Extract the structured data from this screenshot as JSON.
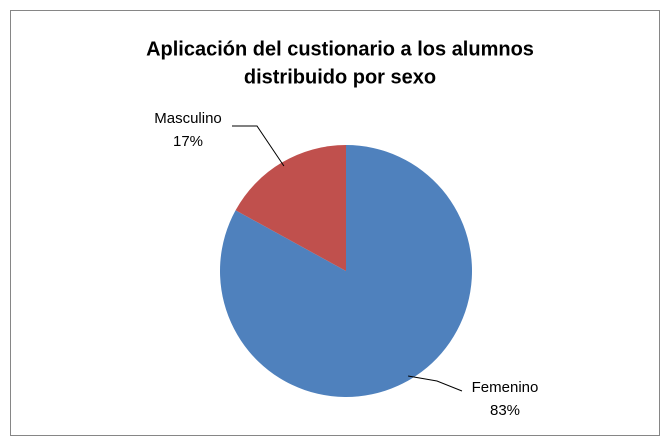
{
  "chart_data": {
    "type": "pie",
    "title": [
      "Aplicación del custionario a los alumnos",
      "distribuido por sexo"
    ],
    "categories": [
      "Femenino",
      "Masculino"
    ],
    "values": [
      83,
      17
    ],
    "value_labels": [
      "83%",
      "17%"
    ],
    "colors": [
      "#4f81bd",
      "#c0504d"
    ]
  }
}
